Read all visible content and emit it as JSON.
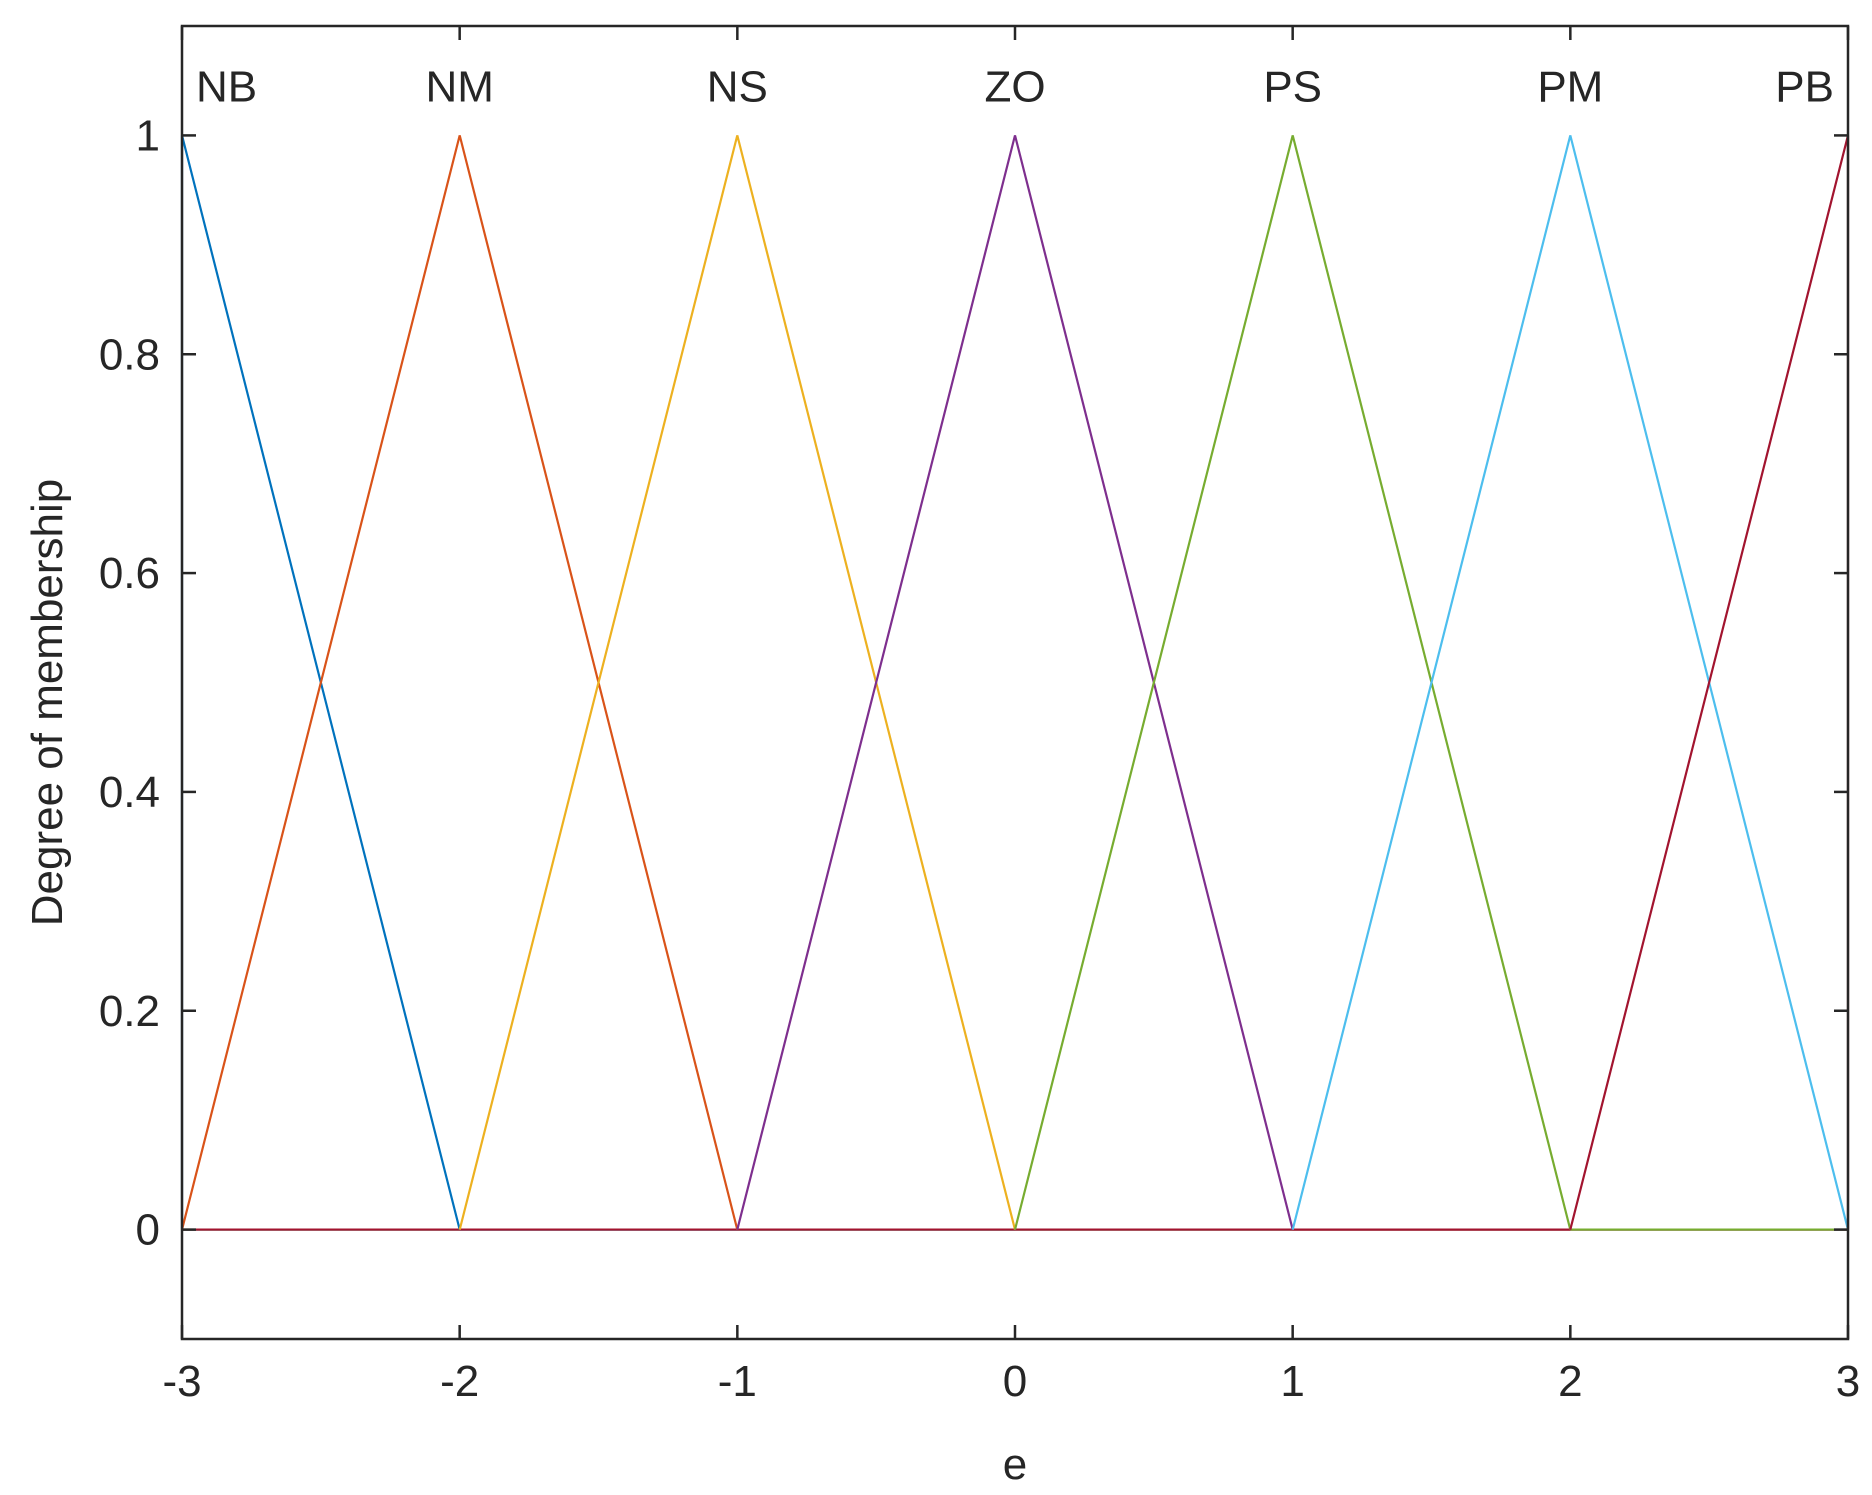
{
  "chart_data": {
    "type": "line",
    "title": "",
    "xlabel": "e",
    "ylabel": "Degree of membership",
    "xlim": [
      -3,
      3
    ],
    "ylim": [
      -0.1,
      1.1
    ],
    "xticks": [
      "-3",
      "-2",
      "-1",
      "0",
      "1",
      "2",
      "3"
    ],
    "yticks": [
      "0",
      "0.2",
      "0.4",
      "0.6",
      "0.8",
      "1"
    ],
    "grid": false,
    "series": [
      {
        "name": "NB",
        "color": "#0072BD",
        "x": [
          -3,
          -3,
          -2
        ],
        "y": [
          0,
          1,
          0
        ],
        "peak": -3
      },
      {
        "name": "NM",
        "color": "#D95319",
        "x": [
          -3,
          -2,
          -1
        ],
        "y": [
          0,
          1,
          0
        ],
        "peak": -2
      },
      {
        "name": "NS",
        "color": "#EDB120",
        "x": [
          -2,
          -1,
          0
        ],
        "y": [
          0,
          1,
          0
        ],
        "peak": -1
      },
      {
        "name": "ZO",
        "color": "#7E2F8E",
        "x": [
          -1,
          0,
          1
        ],
        "y": [
          0,
          1,
          0
        ],
        "peak": 0
      },
      {
        "name": "PS",
        "color": "#77AC30",
        "x": [
          0,
          1,
          2
        ],
        "y": [
          0,
          1,
          0
        ],
        "peak": 1
      },
      {
        "name": "PM",
        "color": "#4DBEEE",
        "x": [
          1,
          2,
          3
        ],
        "y": [
          0,
          1,
          0
        ],
        "peak": 2
      },
      {
        "name": "PB",
        "color": "#A2142F",
        "x": [
          2,
          3,
          3
        ],
        "y": [
          0,
          1,
          0
        ],
        "peak": 3
      }
    ]
  }
}
